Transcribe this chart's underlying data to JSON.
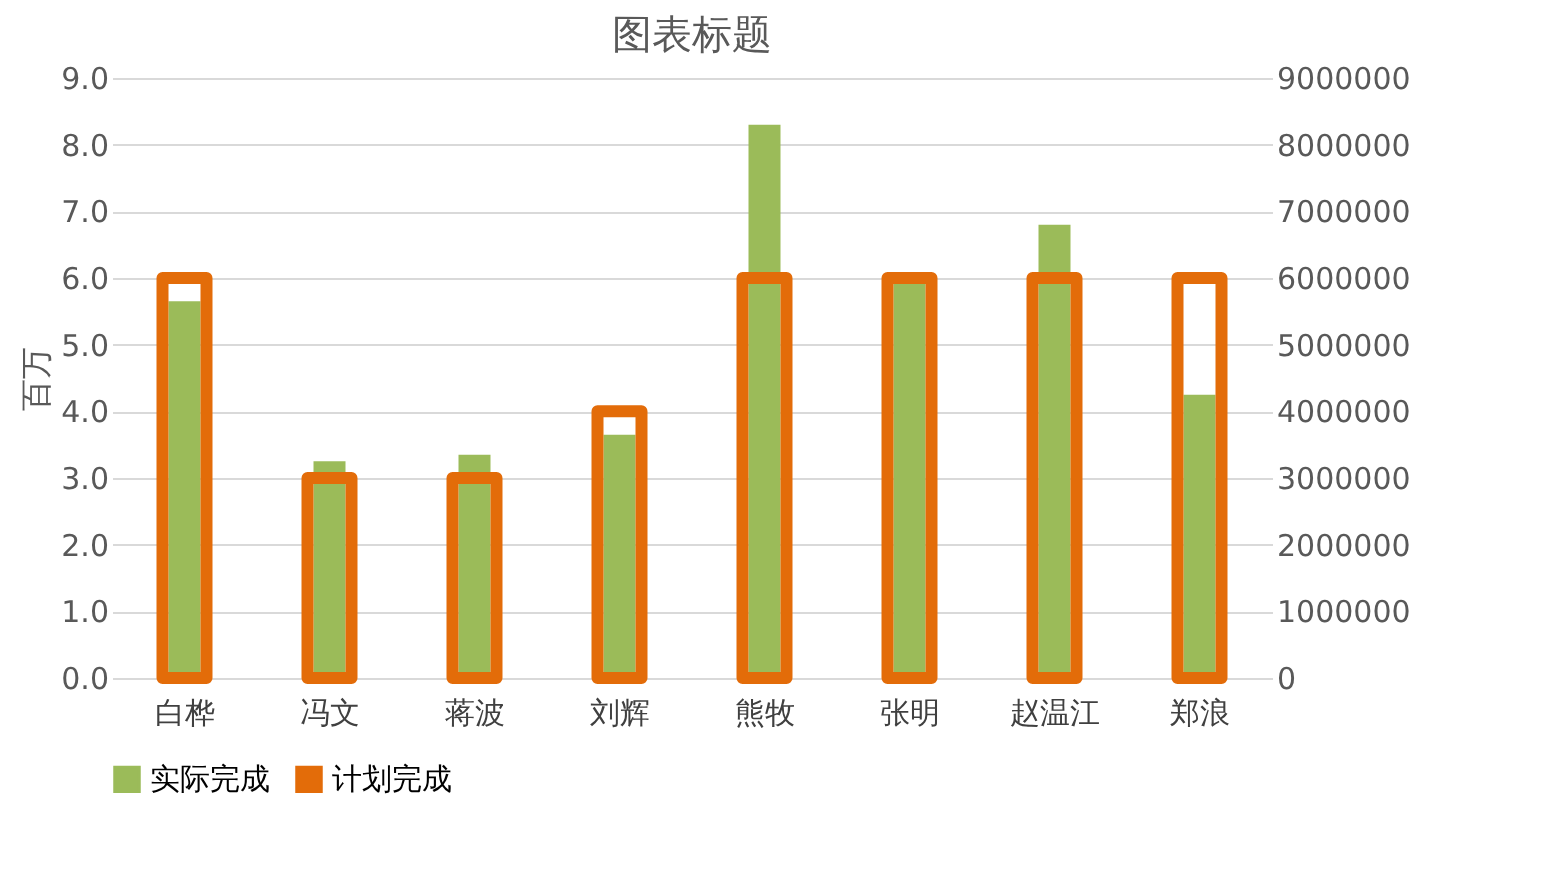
{
  "chart_data": {
    "type": "bar",
    "title": "图表标题",
    "ylabel": "百万",
    "categories": [
      "白桦",
      "冯文",
      "蒋波",
      "刘辉",
      "熊牧",
      "张明",
      "赵温江",
      "郑浪"
    ],
    "series": [
      {
        "name": "实际完成",
        "color": "#9bbb59",
        "values": [
          5.65,
          3.25,
          3.35,
          3.65,
          8.3,
          6.0,
          6.8,
          4.25
        ]
      },
      {
        "name": "计划完成",
        "color": "#e36c09",
        "axis": "y2",
        "values": [
          6000000,
          3000000,
          3000000,
          4000000,
          6000000,
          6000000,
          6000000,
          6000000
        ]
      }
    ],
    "ylim": [
      0,
      9
    ],
    "yticks": [
      {
        "value": 0,
        "label": "0.0"
      },
      {
        "value": 1,
        "label": "1.0"
      },
      {
        "value": 2,
        "label": "2.0"
      },
      {
        "value": 3,
        "label": "3.0"
      },
      {
        "value": 4,
        "label": "4.0"
      },
      {
        "value": 5,
        "label": "5.0"
      },
      {
        "value": 6,
        "label": "6.0"
      },
      {
        "value": 7,
        "label": "7.0"
      },
      {
        "value": 8,
        "label": "8.0"
      },
      {
        "value": 9,
        "label": "9.0"
      }
    ],
    "y2lim": [
      0,
      9000000
    ],
    "y2ticks": [
      0,
      1000000,
      2000000,
      3000000,
      4000000,
      5000000,
      6000000,
      7000000,
      8000000,
      9000000
    ],
    "grid": "y",
    "legend": "bottom"
  }
}
